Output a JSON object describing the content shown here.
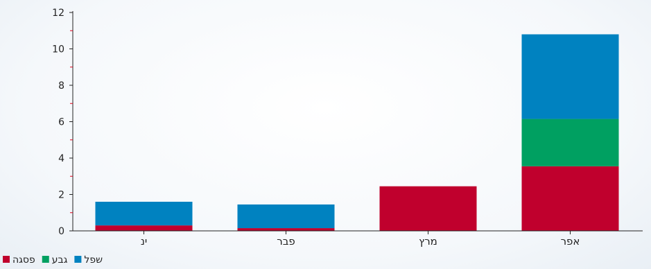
{
  "chart_data": {
    "type": "bar",
    "stacked": true,
    "orientation": "vertical",
    "categories": [
      "אפר",
      "מרץ",
      "פבר",
      "ינ"
    ],
    "series": [
      {
        "name": "פסגה",
        "color": "#c0002d",
        "values": [
          3.55,
          2.45,
          0.15,
          0.3
        ]
      },
      {
        "name": "גבע",
        "color": "#00a061",
        "values": [
          2.6,
          0,
          0,
          0
        ]
      },
      {
        "name": "שפל",
        "color": "#0082c0",
        "values": [
          4.65,
          0,
          1.3,
          1.3
        ]
      }
    ],
    "title": "",
    "xlabel": "",
    "ylabel": "",
    "ylim": [
      0,
      12
    ],
    "yticks": [
      0,
      2,
      4,
      6,
      8,
      10,
      12
    ],
    "ytick_labels": [
      "0",
      "2",
      "4",
      "6",
      "8",
      "10",
      "12"
    ],
    "minor_tick_color": "#e0001b",
    "grid": false,
    "legend_position": "bottom-left",
    "legend_order": [
      "שפל",
      "גבע",
      "פסגה"
    ],
    "axis_color": "#222222"
  }
}
